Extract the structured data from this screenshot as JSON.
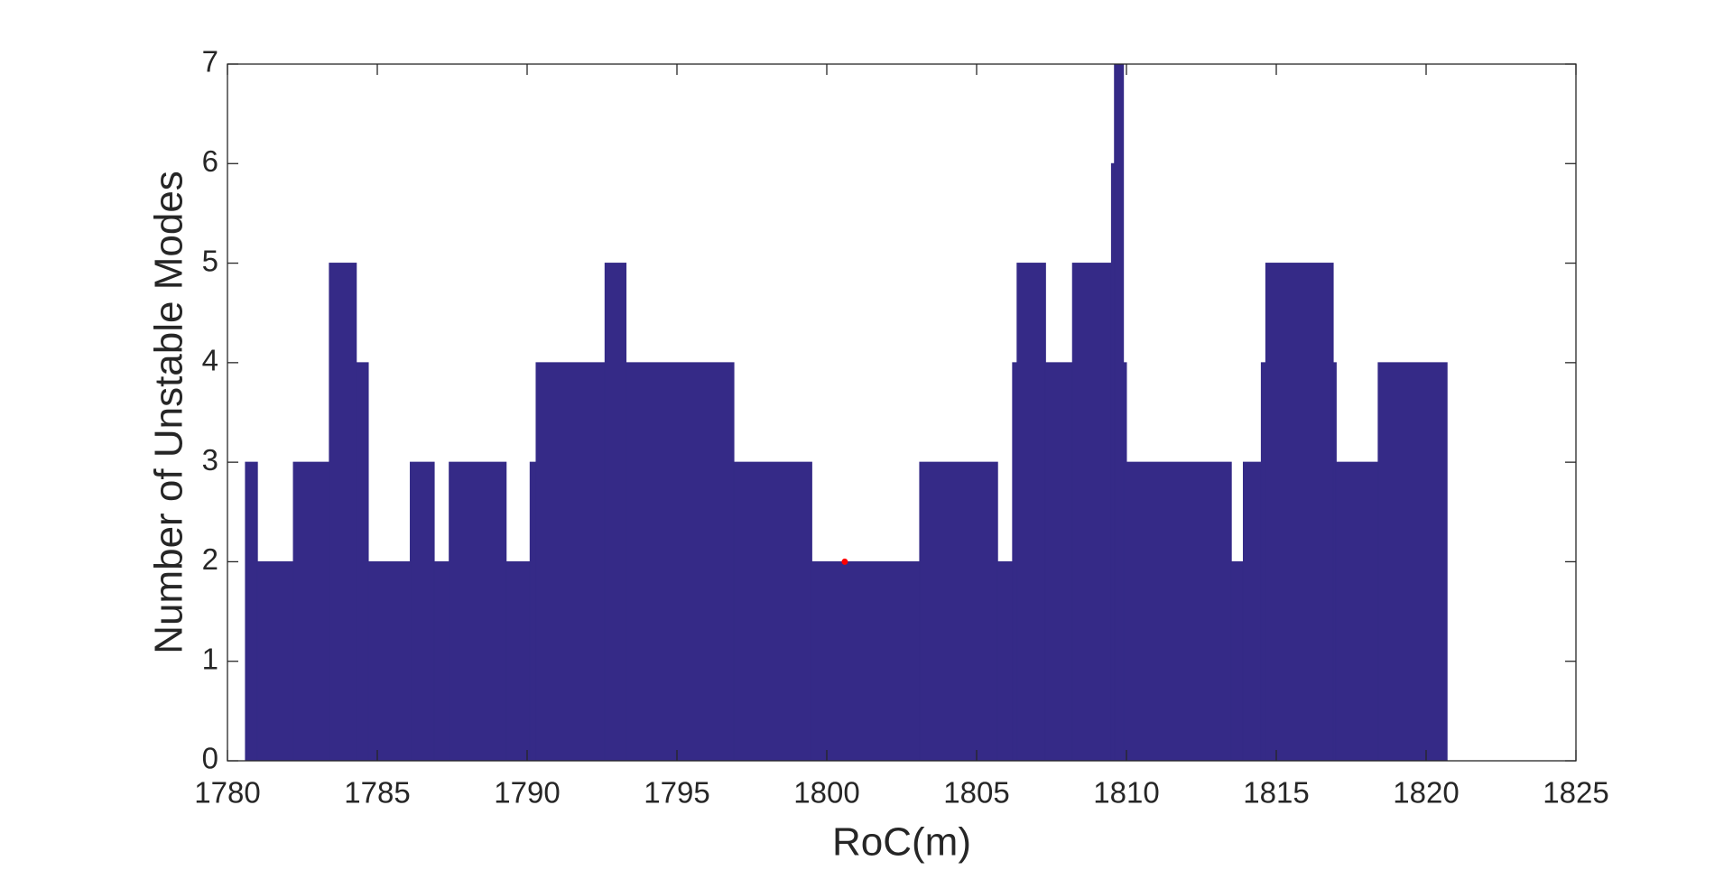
{
  "chart_data": {
    "type": "histogram",
    "xlabel": "RoC(m)",
    "ylabel": "Number of Unstable Modes",
    "bins": [
      1780.6,
      1781.0,
      1782.2,
      1783.4,
      1784.3,
      1784.7,
      1786.1,
      1786.9,
      1787.4,
      1789.3,
      1790.1,
      1790.3,
      1792.6,
      1793.3,
      1796.9,
      1799.5,
      1803.1,
      1805.7,
      1806.2,
      1806.35,
      1807.3,
      1808.2,
      1809.5,
      1809.6,
      1809.9,
      1810.0,
      1813.5,
      1813.9,
      1814.5,
      1814.65,
      1816.9,
      1817.0,
      1818.4,
      1820.7
    ],
    "values": [
      3,
      2,
      3,
      5,
      4,
      2,
      3,
      2,
      3,
      2,
      3,
      4,
      5,
      4,
      3,
      2,
      3,
      2,
      4,
      5,
      4,
      5,
      6,
      7,
      4,
      3,
      2,
      3,
      4,
      5,
      4,
      3,
      4
    ],
    "color": "#352a87",
    "marker": {
      "x": 1800.6,
      "y": 2,
      "color": "#ff0000"
    },
    "xlim": [
      1780,
      1825
    ],
    "xticks": [
      1780,
      1785,
      1790,
      1795,
      1800,
      1805,
      1810,
      1815,
      1820,
      1825
    ],
    "ylim": [
      0,
      7
    ],
    "yticks": [
      0,
      1,
      2,
      3,
      4,
      5,
      6,
      7
    ],
    "grid": false
  }
}
